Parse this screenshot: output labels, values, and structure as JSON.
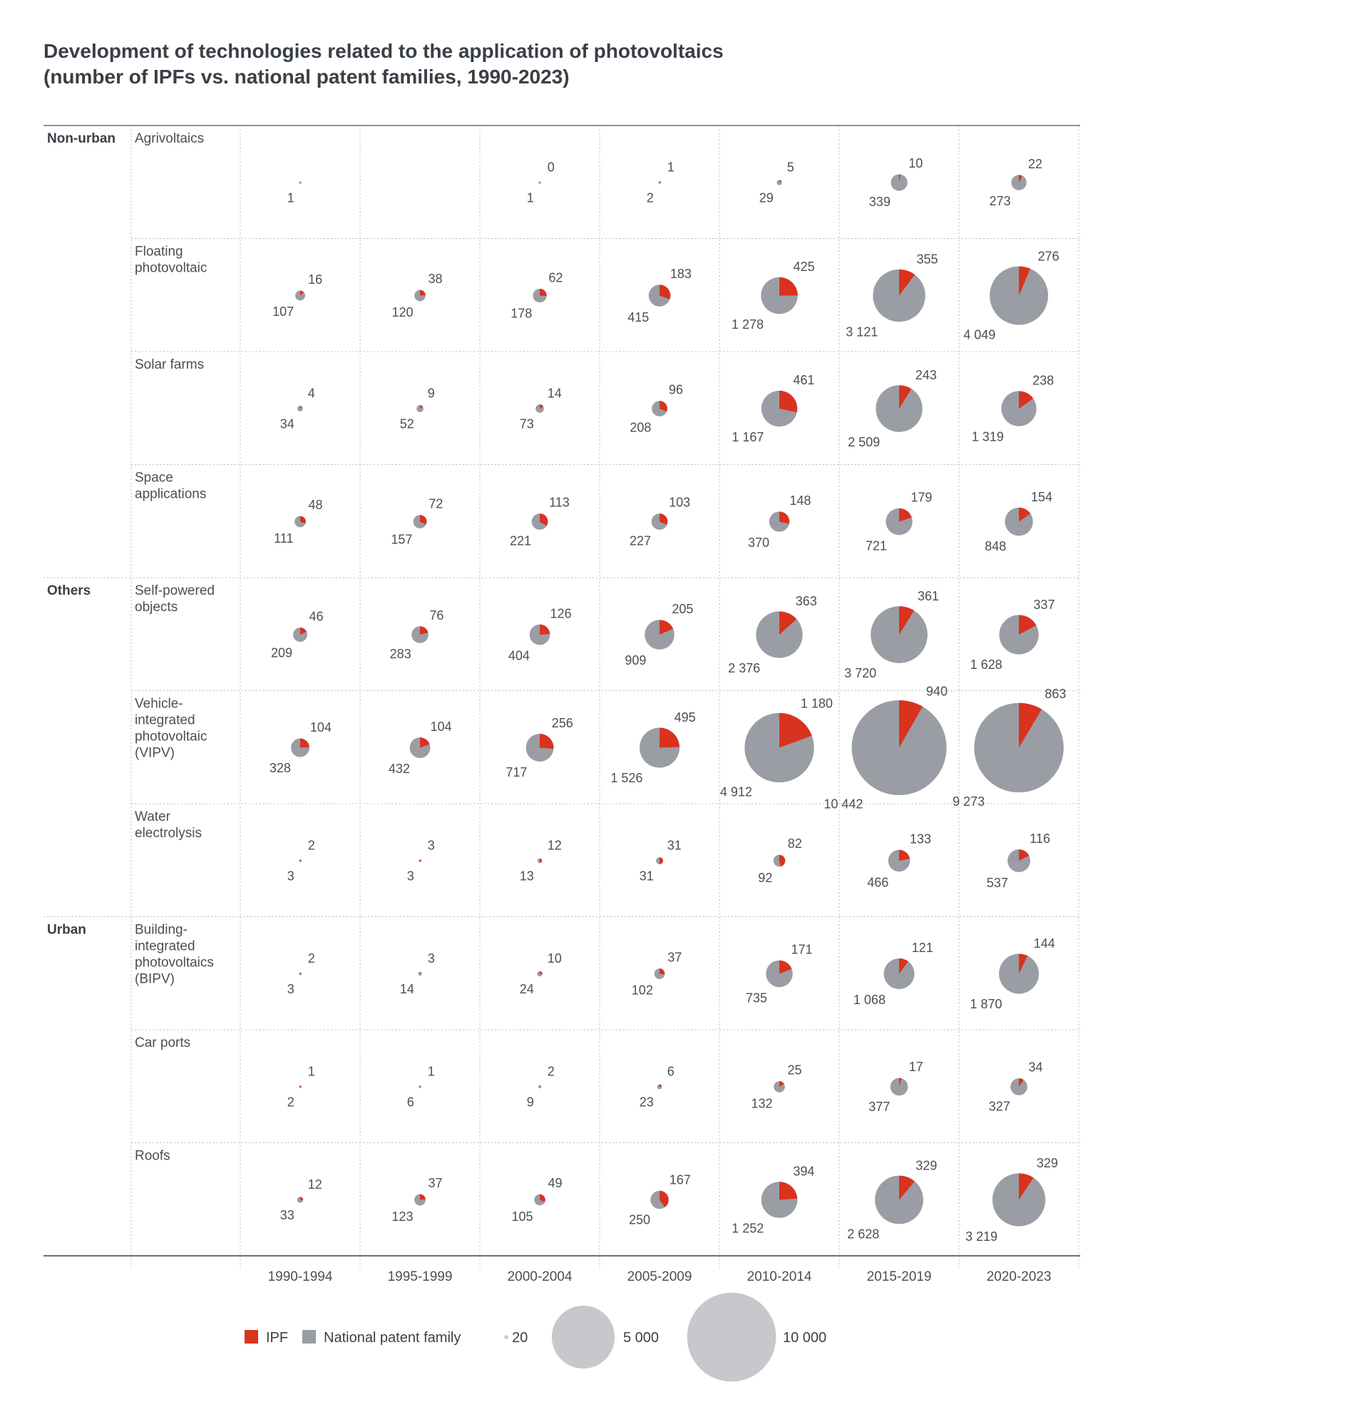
{
  "title": {
    "line1": "Development of technologies related to the application of photovoltaics",
    "line2": "(number of IPFs vs. national patent families, 1990-2023)"
  },
  "colors": {
    "ipf": "#d9321f",
    "national": "#9a9da3",
    "legend_bubble": "#c6c8cb",
    "text": "#3a3f47",
    "grid": "#b9bcc0",
    "axis": "#6b6f75"
  },
  "chart_data": {
    "type": "pie-grid",
    "periods": [
      "1990-1994",
      "1995-1999",
      "2000-2004",
      "2005-2009",
      "2010-2014",
      "2015-2019",
      "2020-2023"
    ],
    "series_names": [
      "IPF",
      "National patent family"
    ],
    "groups": [
      {
        "name": "Non-urban",
        "rows": [
          {
            "label": [
              "Agrivoltaics"
            ],
            "values": [
              [
                0,
                1,
                "",
                "1"
              ],
              null,
              [
                0,
                1,
                "0",
                "1"
              ],
              [
                1,
                2,
                "1",
                "2"
              ],
              [
                5,
                29,
                "5",
                "29"
              ],
              [
                10,
                339,
                "10",
                "339"
              ],
              [
                22,
                273,
                "22",
                "273"
              ]
            ]
          },
          {
            "label": [
              "Floating",
              "photovoltaic"
            ],
            "values": [
              [
                16,
                107,
                "16",
                "107"
              ],
              [
                38,
                120,
                "38",
                "120"
              ],
              [
                62,
                178,
                "62",
                "178"
              ],
              [
                183,
                415,
                "183",
                "415"
              ],
              [
                425,
                1278,
                "425",
                "1 278"
              ],
              [
                355,
                3121,
                "355",
                "3 121"
              ],
              [
                276,
                4049,
                "276",
                "4 049"
              ]
            ]
          },
          {
            "label": [
              "Solar farms"
            ],
            "values": [
              [
                4,
                34,
                "4",
                "34"
              ],
              [
                9,
                52,
                "9",
                "52"
              ],
              [
                14,
                73,
                "14",
                "73"
              ],
              [
                96,
                208,
                "96",
                "208"
              ],
              [
                461,
                1167,
                "461",
                "1 167"
              ],
              [
                243,
                2509,
                "243",
                "2 509"
              ],
              [
                238,
                1319,
                "238",
                "1 319"
              ]
            ]
          },
          {
            "label": [
              "Space",
              "applications"
            ],
            "values": [
              [
                48,
                111,
                "48",
                "111"
              ],
              [
                72,
                157,
                "72",
                "157"
              ],
              [
                113,
                221,
                "113",
                "221"
              ],
              [
                103,
                227,
                "103",
                "227"
              ],
              [
                148,
                370,
                "148",
                "370"
              ],
              [
                179,
                721,
                "179",
                "721"
              ],
              [
                154,
                848,
                "154",
                "848"
              ]
            ]
          }
        ]
      },
      {
        "name": "Others",
        "rows": [
          {
            "label": [
              "Self-powered",
              "objects"
            ],
            "values": [
              [
                46,
                209,
                "46",
                "209"
              ],
              [
                76,
                283,
                "76",
                "283"
              ],
              [
                126,
                404,
                "126",
                "404"
              ],
              [
                205,
                909,
                "205",
                "909"
              ],
              [
                363,
                2376,
                "363",
                "2 376"
              ],
              [
                361,
                3720,
                "361",
                "3 720"
              ],
              [
                337,
                1628,
                "337",
                "1 628"
              ]
            ]
          },
          {
            "label": [
              "Vehicle-",
              "integrated",
              "photovoltaic",
              "(VIPV)"
            ],
            "values": [
              [
                104,
                328,
                "104",
                "328"
              ],
              [
                104,
                432,
                "104",
                "432"
              ],
              [
                256,
                717,
                "256",
                "717"
              ],
              [
                495,
                1526,
                "495",
                "1 526"
              ],
              [
                1180,
                4912,
                "1 180",
                "4 912"
              ],
              [
                940,
                10442,
                "940",
                "10 442"
              ],
              [
                863,
                9273,
                "863",
                "9 273"
              ]
            ]
          },
          {
            "label": [
              "Water",
              "electrolysis"
            ],
            "values": [
              [
                2,
                3,
                "2",
                "3"
              ],
              [
                3,
                3,
                "3",
                "3"
              ],
              [
                12,
                13,
                "12",
                "13"
              ],
              [
                31,
                31,
                "31",
                "31"
              ],
              [
                82,
                92,
                "82",
                "92"
              ],
              [
                133,
                466,
                "133",
                "466"
              ],
              [
                116,
                537,
                "116",
                "537"
              ]
            ]
          }
        ]
      },
      {
        "name": "Urban",
        "rows": [
          {
            "label": [
              "Building-",
              "integrated",
              "photovoltaics",
              "(BIPV)"
            ],
            "values": [
              [
                2,
                3,
                "2",
                "3"
              ],
              [
                3,
                14,
                "3",
                "14"
              ],
              [
                10,
                24,
                "10",
                "24"
              ],
              [
                37,
                102,
                "37",
                "102"
              ],
              [
                171,
                735,
                "171",
                "735"
              ],
              [
                121,
                1068,
                "121",
                "1 068"
              ],
              [
                144,
                1870,
                "144",
                "1 870"
              ]
            ]
          },
          {
            "label": [
              "Car ports"
            ],
            "values": [
              [
                1,
                2,
                "1",
                "2"
              ],
              [
                1,
                6,
                "1",
                "6"
              ],
              [
                2,
                9,
                "2",
                "9"
              ],
              [
                6,
                23,
                "6",
                "23"
              ],
              [
                25,
                132,
                "25",
                "132"
              ],
              [
                17,
                377,
                "17",
                "377"
              ],
              [
                34,
                327,
                "34",
                "327"
              ]
            ]
          },
          {
            "label": [
              "Roofs"
            ],
            "values": [
              [
                12,
                33,
                "12",
                "33"
              ],
              [
                37,
                123,
                "37",
                "123"
              ],
              [
                49,
                105,
                "49",
                "105"
              ],
              [
                167,
                250,
                "167",
                "250"
              ],
              [
                394,
                1252,
                "394",
                "1 252"
              ],
              [
                329,
                2628,
                "329",
                "2 628"
              ],
              [
                329,
                3219,
                "329",
                "3 219"
              ]
            ]
          }
        ]
      }
    ],
    "legend": {
      "ipf_label": "IPF",
      "national_label": "National patent family",
      "size_values": [
        20,
        5000,
        10000
      ],
      "size_labels": [
        "20",
        "5 000",
        "10 000"
      ]
    }
  }
}
